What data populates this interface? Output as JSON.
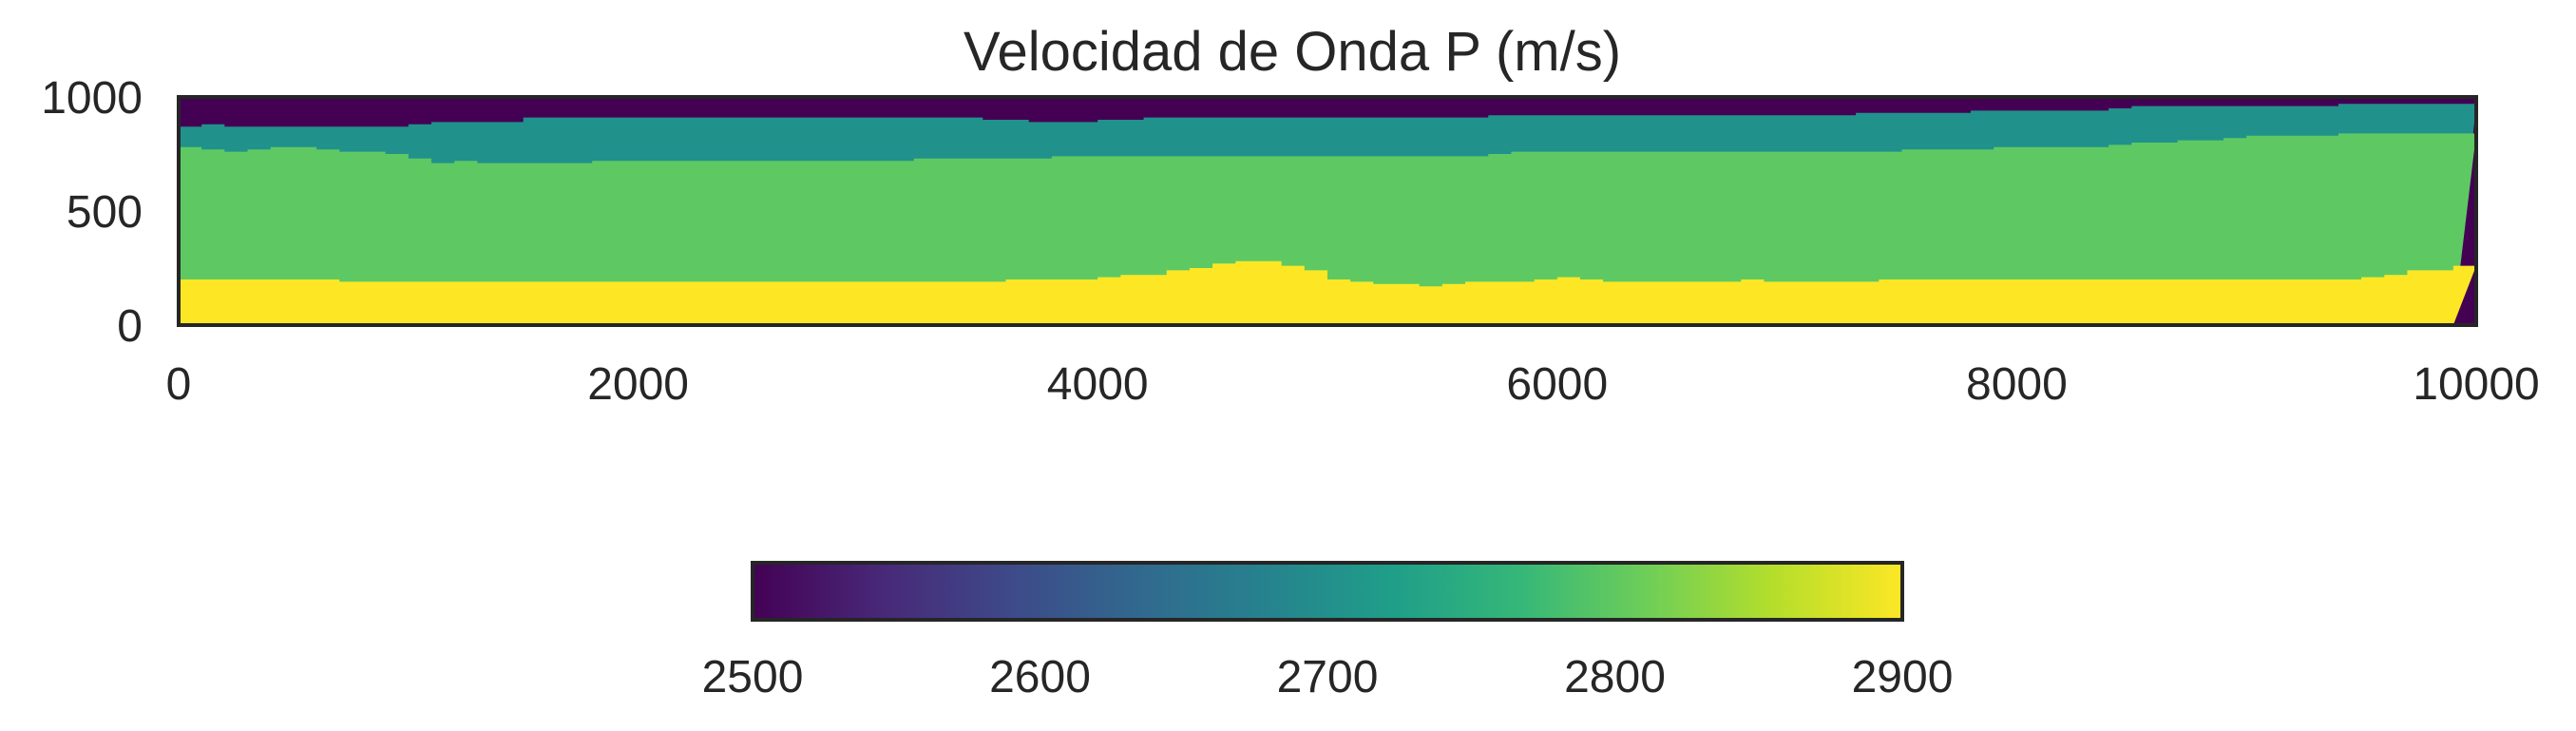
{
  "chart_data": {
    "type": "heatmap",
    "title": "Velocidad de Onda P (m/s)",
    "xlabel": "",
    "ylabel": "",
    "xlim": [
      0,
      10000
    ],
    "ylim": [
      0,
      1000
    ],
    "xticks": [
      "0",
      "2000",
      "4000",
      "6000",
      "8000",
      "10000"
    ],
    "yticks": [
      "0",
      "500",
      "1000"
    ],
    "grid": false,
    "colormap": "viridis",
    "colorbar": {
      "orientation": "horizontal",
      "placement": "bottom-center",
      "range": [
        2500,
        2900
      ],
      "ticks": [
        "2500",
        "2600",
        "2700",
        "2800",
        "2900"
      ],
      "stops": [
        "#440154",
        "#482878",
        "#3e4989",
        "#31688e",
        "#26828e",
        "#1f9e89",
        "#35b779",
        "#6ece58",
        "#b5de2b",
        "#fde725"
      ]
    },
    "layers": [
      {
        "name": "layer-1",
        "velocity": 2900,
        "color": "#fde725"
      },
      {
        "name": "layer-2",
        "velocity": 2800,
        "color": "#5ec962"
      },
      {
        "name": "layer-3",
        "velocity": 2700,
        "color": "#21918c"
      },
      {
        "name": "layer-4",
        "velocity": 2500,
        "color": "#440154"
      }
    ],
    "boundaries": {
      "x": [
        0,
        100,
        200,
        300,
        400,
        500,
        600,
        700,
        800,
        900,
        1000,
        1100,
        1200,
        1300,
        1400,
        1500,
        1600,
        1700,
        1800,
        1900,
        2000,
        2100,
        2200,
        2300,
        2400,
        2500,
        2600,
        2700,
        2800,
        2900,
        3000,
        3100,
        3200,
        3300,
        3400,
        3500,
        3600,
        3700,
        3800,
        3900,
        4000,
        4100,
        4200,
        4300,
        4400,
        4500,
        4600,
        4700,
        4800,
        4900,
        5000,
        5100,
        5200,
        5300,
        5400,
        5500,
        5600,
        5700,
        5800,
        5900,
        6000,
        6100,
        6200,
        6300,
        6400,
        6500,
        6600,
        6700,
        6800,
        6900,
        7000,
        7100,
        7200,
        7300,
        7400,
        7500,
        7600,
        7700,
        7800,
        7900,
        8000,
        8100,
        8200,
        8300,
        8400,
        8500,
        8600,
        8700,
        8800,
        8900,
        9000,
        9100,
        9200,
        9300,
        9400,
        9500,
        9600,
        9700,
        9800,
        9900,
        10000
      ],
      "yellow_top": [
        200,
        200,
        200,
        200,
        200,
        200,
        200,
        190,
        190,
        190,
        190,
        190,
        190,
        190,
        190,
        190,
        190,
        190,
        190,
        190,
        190,
        190,
        190,
        190,
        190,
        190,
        190,
        190,
        190,
        190,
        190,
        190,
        190,
        190,
        190,
        190,
        200,
        200,
        200,
        200,
        210,
        220,
        220,
        240,
        250,
        270,
        280,
        280,
        260,
        240,
        200,
        190,
        180,
        180,
        170,
        180,
        190,
        190,
        190,
        200,
        210,
        200,
        190,
        190,
        190,
        190,
        190,
        190,
        200,
        190,
        190,
        190,
        190,
        190,
        200,
        200,
        200,
        200,
        200,
        200,
        200,
        200,
        200,
        200,
        200,
        200,
        200,
        200,
        200,
        200,
        200,
        200,
        200,
        200,
        200,
        210,
        220,
        240,
        240,
        260,
        240
      ],
      "green_top": [
        780,
        770,
        760,
        770,
        780,
        780,
        770,
        760,
        760,
        750,
        730,
        710,
        720,
        710,
        710,
        710,
        710,
        710,
        720,
        720,
        720,
        720,
        720,
        720,
        720,
        720,
        720,
        720,
        720,
        720,
        720,
        720,
        730,
        730,
        730,
        730,
        730,
        730,
        740,
        740,
        740,
        740,
        740,
        740,
        740,
        740,
        740,
        740,
        740,
        740,
        740,
        740,
        740,
        740,
        740,
        740,
        740,
        750,
        760,
        760,
        760,
        760,
        760,
        760,
        760,
        760,
        760,
        760,
        760,
        760,
        760,
        760,
        760,
        760,
        760,
        770,
        770,
        770,
        770,
        780,
        780,
        780,
        780,
        780,
        790,
        800,
        800,
        810,
        810,
        820,
        830,
        830,
        830,
        830,
        840,
        840,
        840,
        840,
        840,
        840,
        840
      ],
      "teal_top": [
        870,
        880,
        870,
        870,
        870,
        870,
        870,
        870,
        870,
        870,
        880,
        890,
        890,
        890,
        890,
        910,
        910,
        910,
        910,
        910,
        910,
        910,
        910,
        910,
        910,
        910,
        910,
        910,
        910,
        910,
        910,
        910,
        910,
        910,
        910,
        900,
        900,
        890,
        890,
        890,
        900,
        900,
        910,
        910,
        910,
        910,
        910,
        910,
        910,
        910,
        910,
        910,
        910,
        910,
        910,
        910,
        910,
        920,
        920,
        920,
        920,
        920,
        920,
        920,
        920,
        920,
        920,
        920,
        920,
        920,
        920,
        920,
        920,
        930,
        930,
        930,
        930,
        930,
        940,
        940,
        940,
        940,
        940,
        940,
        950,
        960,
        960,
        960,
        960,
        960,
        960,
        960,
        960,
        960,
        970,
        970,
        970,
        970,
        970,
        970,
        970
      ]
    }
  }
}
